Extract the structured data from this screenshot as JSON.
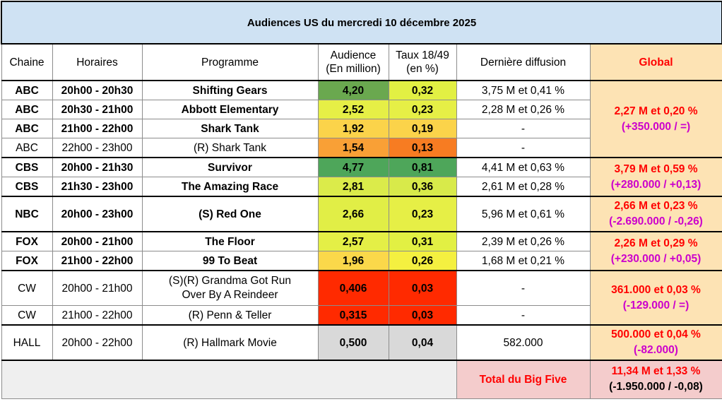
{
  "title": "Audiences US du mercredi 10 décembre 2025",
  "headers": {
    "chaine": "Chaine",
    "horaires": "Horaires",
    "programme": "Programme",
    "audience_l1": "Audience",
    "audience_l2": "(En million)",
    "taux_l1": "Taux 18/49",
    "taux_l2": "(en %)",
    "derniere": "Dernière diffusion",
    "global": "Global"
  },
  "rows": [
    {
      "chaine": "ABC",
      "horaires": "20h00 - 20h30",
      "programme": "Shifting Gears",
      "audience": "4,20",
      "taux": "0,32",
      "derniere": "3,75 M et 0,41 %",
      "audience_color": "#6aa84f",
      "taux_color": "#e2f043",
      "bold": true
    },
    {
      "chaine": "ABC",
      "horaires": "20h30 - 21h00",
      "programme": "Abbott Elementary",
      "audience": "2,52",
      "taux": "0,23",
      "derniere": "2,28 M et 0,26 %",
      "audience_color": "#e6ef46",
      "taux_color": "#e6ef46",
      "bold": true
    },
    {
      "chaine": "ABC",
      "horaires": "21h00 - 22h00",
      "programme": "Shark Tank",
      "audience": "1,92",
      "taux": "0,19",
      "derniere": "-",
      "audience_color": "#fbd34a",
      "taux_color": "#fbd34a",
      "bold": true
    },
    {
      "chaine": "ABC",
      "horaires": "22h00 - 23h00",
      "programme": "(R) Shark Tank",
      "audience": "1,54",
      "taux": "0,13",
      "derniere": "-",
      "audience_color": "#f9a036",
      "taux_color": "#f77c22",
      "bold": false
    },
    {
      "chaine": "CBS",
      "horaires": "20h00 - 21h30",
      "programme": "Survivor",
      "audience": "4,77",
      "taux": "0,81",
      "derniere": "4,41 M et 0,63 %",
      "audience_color": "#4ea65a",
      "taux_color": "#4ea65a",
      "bold": true
    },
    {
      "chaine": "CBS",
      "horaires": "21h30 - 23h00",
      "programme": "The Amazing Race",
      "audience": "2,81",
      "taux": "0,36",
      "derniere": "2,61 M et 0,28 %",
      "audience_color": "#dbeb4a",
      "taux_color": "#d8ea4a",
      "bold": true
    },
    {
      "chaine": "NBC",
      "horaires": "20h00 - 23h00",
      "programme": "(S) Red One",
      "audience": "2,66",
      "taux": "0,23",
      "derniere": "5,96 M et 0,61 %",
      "audience_color": "#e1ee46",
      "taux_color": "#e6ef46",
      "bold": true
    },
    {
      "chaine": "FOX",
      "horaires": "20h00 - 21h00",
      "programme": "The Floor",
      "audience": "2,57",
      "taux": "0,31",
      "derniere": "2,39 M et 0,26 %",
      "audience_color": "#e4ef46",
      "taux_color": "#e2f043",
      "bold": true
    },
    {
      "chaine": "FOX",
      "horaires": "21h00 - 22h00",
      "programme": "99 To Beat",
      "audience": "1,96",
      "taux": "0,26",
      "derniere": "1,68 M et 0,21 %",
      "audience_color": "#fbd84a",
      "taux_color": "#f4f040",
      "bold": true
    },
    {
      "chaine": "CW",
      "horaires": "20h00 - 21h00",
      "programme_l1": "(S)(R) Grandma  Got Run",
      "programme_l2": "Over By A Reindeer",
      "audience": "0,406",
      "taux": "0,03",
      "derniere": "-",
      "audience_color": "#ff2a00",
      "taux_color": "#ff2a00",
      "bold": false
    },
    {
      "chaine": "CW",
      "horaires": "21h00 - 22h00",
      "programme": "(R) Penn & Teller",
      "audience": "0,315",
      "taux": "0,03",
      "derniere": "-",
      "audience_color": "#ff2a00",
      "taux_color": "#ff2a00",
      "bold": false
    },
    {
      "chaine": "HALL",
      "horaires": "20h00 - 22h00",
      "programme": "(R) Hallmark Movie",
      "audience": "0,500",
      "taux": "0,04",
      "derniere": "582.000",
      "audience_color": "#d9d9d9",
      "taux_color": "#d9d9d9",
      "bold": false
    }
  ],
  "globals": {
    "abc": {
      "l1": "2,27 M et 0,20 %",
      "l2": "(+350.000 / =)"
    },
    "cbs": {
      "l1": "3,79 M et 0,59 %",
      "l2": "(+280.000 / +0,13)"
    },
    "nbc": {
      "l1": "2,66 M et 0,23 %",
      "l2": "(-2.690.000 / -0,26)"
    },
    "fox": {
      "l1": "2,26 M et 0,29 %",
      "l2": "(+230.000 / +0,05)"
    },
    "cw": {
      "l1": "361.000 et 0,03 %",
      "l2": "(-129.000 / =)"
    },
    "hall": {
      "l1": "500.000 et 0,04 %",
      "l2": "(-82.000)"
    }
  },
  "total": {
    "label": "Total du Big Five",
    "l1": "11,34 M et 1,33 %",
    "l2": "(-1.950.000 / -0,08)"
  }
}
